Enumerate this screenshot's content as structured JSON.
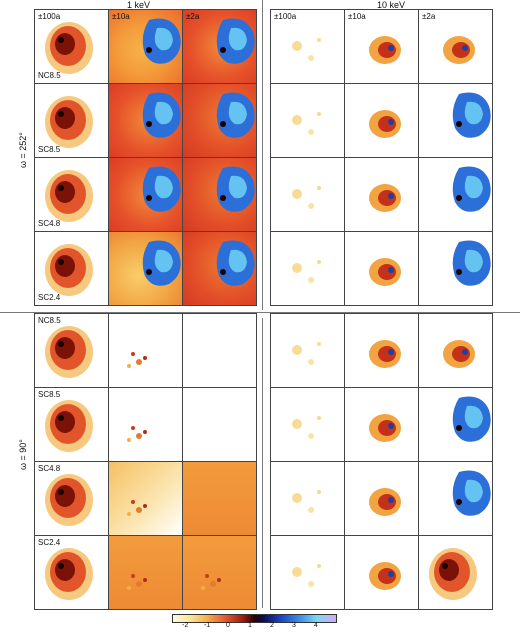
{
  "energies": {
    "left": "1 keV",
    "right": "10 keV"
  },
  "scales": [
    "±100a",
    "±10a",
    "±2a"
  ],
  "runs": [
    "NC8.5",
    "SC8.5",
    "SC4.8",
    "SC2.4"
  ],
  "phases": {
    "top": "ω = 252°",
    "bottom": "ω = 90°"
  },
  "colorbar": {
    "ticks": [
      "-2",
      "-1",
      "0",
      "1",
      "2",
      "3",
      "4"
    ]
  },
  "colors": {
    "low": "#fffbe2",
    "mid": "#e8592b",
    "peak": "#2a0000",
    "high": "#3f8ee8",
    "max": "#d3a9f5"
  }
}
